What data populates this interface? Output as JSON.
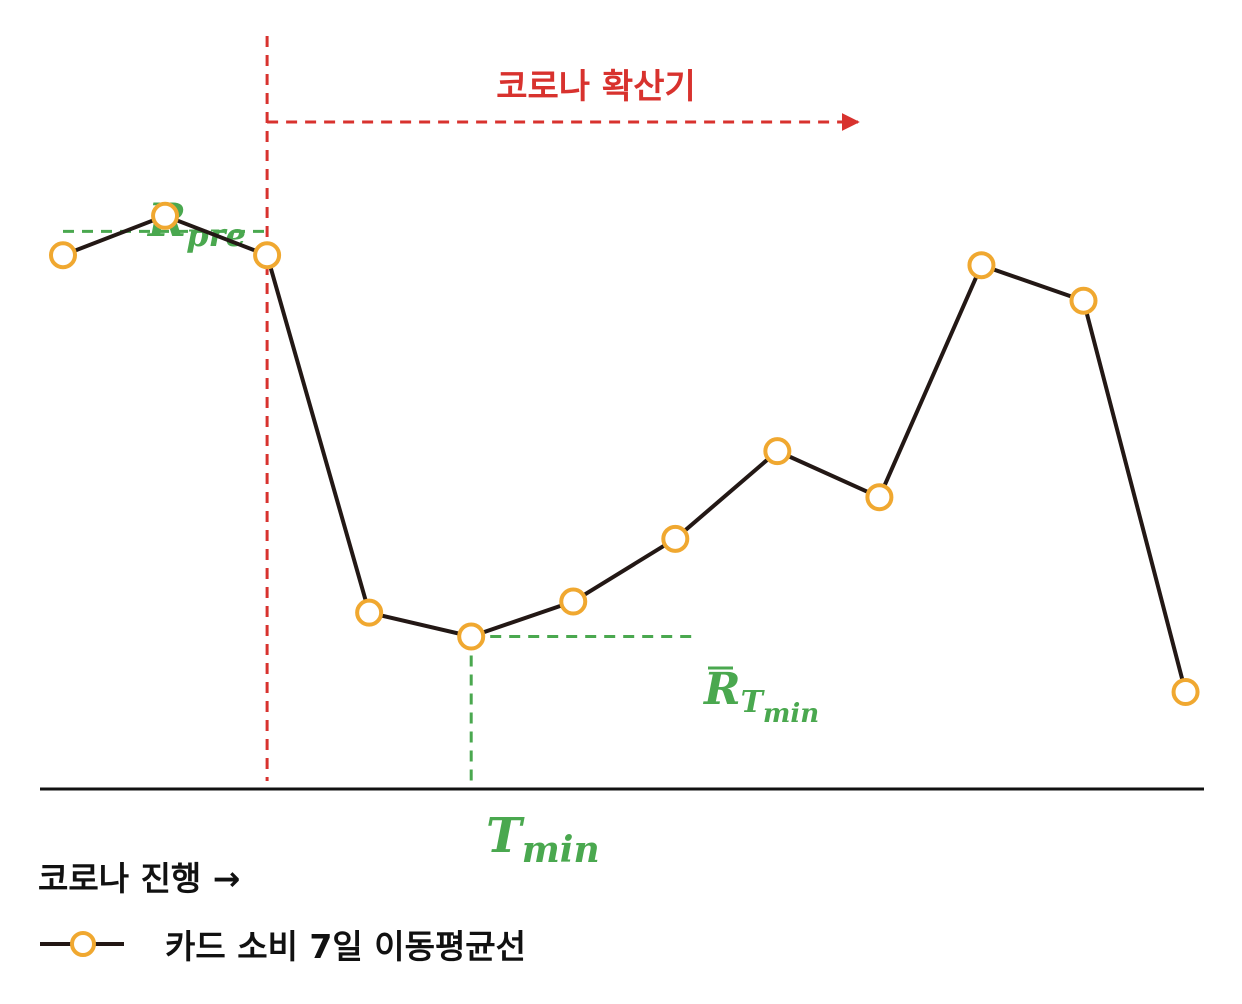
{
  "chart_data": {
    "type": "line",
    "title": "",
    "xlabel": "코로나 진행 →",
    "ylabel": "",
    "grid": false,
    "series": [
      {
        "name": "카드 소비 7일 이동평균선",
        "x": [
          1,
          2,
          3,
          4,
          5,
          6,
          7,
          8,
          9,
          10,
          11,
          12
        ],
        "values": [
          0.787,
          0.858,
          0.787,
          0.143,
          0.1,
          0.163,
          0.276,
          0.434,
          0.351,
          0.769,
          0.705,
          0.0
        ]
      }
    ],
    "annotations": {
      "spread_period": "코로나 확산기",
      "r_pre": {
        "base": "R",
        "sub": "pre",
        "value": 0.83
      },
      "r_tmin": {
        "base": "R",
        "sub_base": "T",
        "sub_sub": "min"
      },
      "t_min": {
        "base": "T",
        "sub": "min",
        "x": 5
      },
      "spread_start_x": 3
    },
    "ylim": [
      0,
      1
    ],
    "legend": {
      "position": "bottom-left",
      "label": "카드 소비 7일 이동평균선"
    }
  },
  "colors": {
    "line": "#231815",
    "marker_stroke": "#f0a830",
    "marker_fill": "#ffffff",
    "spread": "#d8322e",
    "annotation": "#4aa84f",
    "axis": "#111111"
  }
}
